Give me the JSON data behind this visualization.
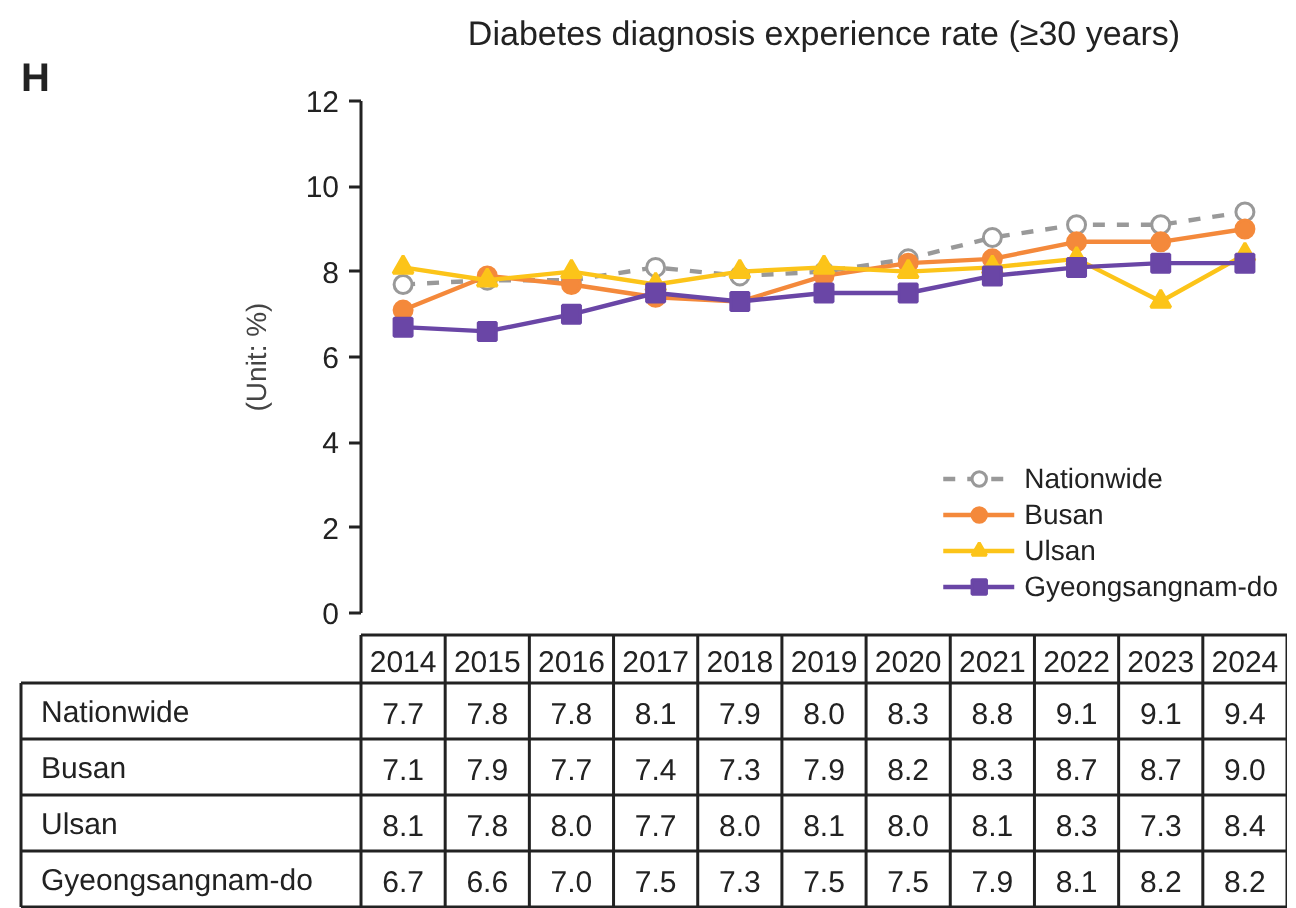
{
  "chart_data": {
    "type": "line",
    "title": "Diabetes diagnosis experience rate (≥30 years)",
    "ylabel": "(Unit: %)",
    "annotations": [
      "H"
    ],
    "categories": [
      "2014",
      "2015",
      "2016",
      "2017",
      "2018",
      "2019",
      "2020",
      "2021",
      "2022",
      "2023",
      "2024"
    ],
    "ylim": [
      0,
      12
    ],
    "yticks": [
      0,
      2,
      4,
      6,
      8,
      10,
      12
    ],
    "grid": false,
    "legend": "bottom right",
    "series": [
      {
        "name": "Nationwide",
        "color": "#999999",
        "marker": "circle",
        "line_style": "dashed",
        "values": [
          7.7,
          7.8,
          7.8,
          8.1,
          7.9,
          8.0,
          8.3,
          8.8,
          9.1,
          9.1,
          9.4
        ],
        "value_labels": [
          "7.7",
          "7.8",
          "7.8",
          "8.1",
          "7.9",
          "8.0",
          "8.3",
          "8.8",
          "9.1",
          "9.1",
          "9.4"
        ]
      },
      {
        "name": "Busan",
        "color": "#f4893b",
        "marker": "circle",
        "line_style": "solid",
        "values": [
          7.1,
          7.9,
          7.7,
          7.4,
          7.3,
          7.9,
          8.2,
          8.3,
          8.7,
          8.7,
          9.0
        ],
        "value_labels": [
          "7.1",
          "7.9",
          "7.7",
          "7.4",
          "7.3",
          "7.9",
          "8.2",
          "8.3",
          "8.7",
          "8.7",
          "9.0"
        ]
      },
      {
        "name": "Ulsan",
        "color": "#fcc419",
        "marker": "triangle",
        "line_style": "solid",
        "values": [
          8.1,
          7.8,
          8.0,
          7.7,
          8.0,
          8.1,
          8.0,
          8.1,
          8.3,
          7.3,
          8.4
        ],
        "value_labels": [
          "8.1",
          "7.8",
          "8.0",
          "7.7",
          "8.0",
          "8.1",
          "8.0",
          "8.1",
          "8.3",
          "7.3",
          "8.4"
        ]
      },
      {
        "name": "Gyeongsangnam-do",
        "color": "#6a46a6",
        "marker": "square",
        "line_style": "solid",
        "values": [
          6.7,
          6.6,
          7.0,
          7.5,
          7.3,
          7.5,
          7.5,
          7.9,
          8.1,
          8.2,
          8.2
        ],
        "value_labels": [
          "6.7",
          "6.6",
          "7.0",
          "7.5",
          "7.3",
          "7.5",
          "7.5",
          "7.9",
          "8.1",
          "8.2",
          "8.2"
        ]
      }
    ]
  }
}
